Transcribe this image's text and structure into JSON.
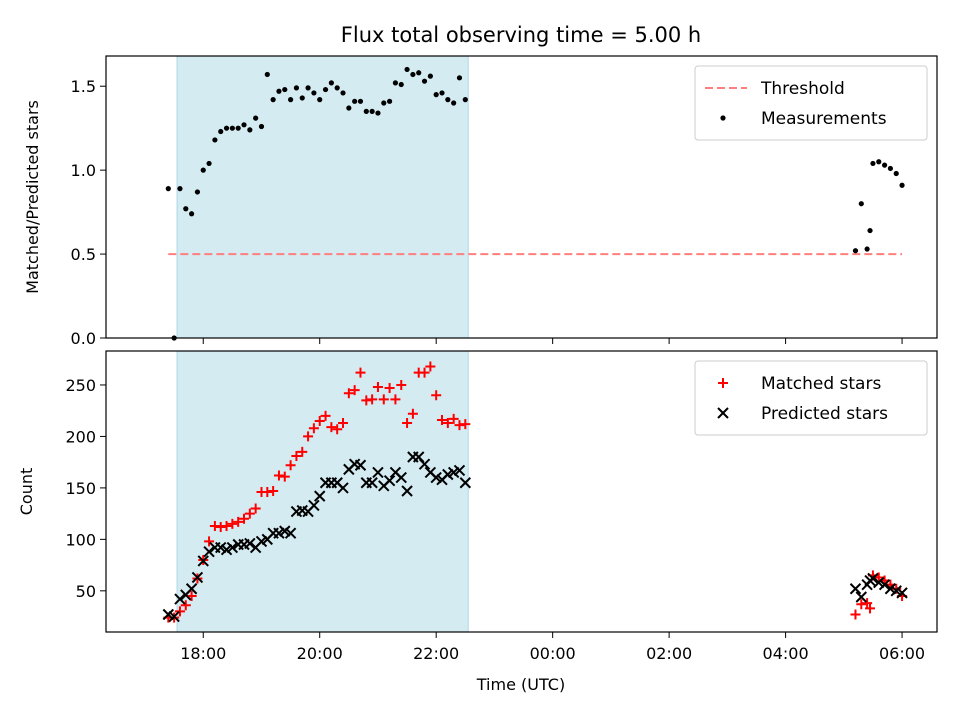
{
  "title": "Flux total observing time = 5.00 h",
  "x_axis": {
    "label": "Time (UTC)",
    "unit": "hours since 00:00 of first night",
    "range": [
      16.33,
      30.6
    ],
    "ticks": [
      {
        "value": 18,
        "label": "18:00"
      },
      {
        "value": 20,
        "label": "20:00"
      },
      {
        "value": 22,
        "label": "22:00"
      },
      {
        "value": 24,
        "label": "00:00"
      },
      {
        "value": 26,
        "label": "02:00"
      },
      {
        "value": 28,
        "label": "04:00"
      },
      {
        "value": 30,
        "label": "06:00"
      }
    ]
  },
  "shaded_interval": {
    "start": 17.55,
    "end": 22.55,
    "color": "#add8e6"
  },
  "colors": {
    "threshold": "#ff7f7f",
    "measurements": "#000000",
    "matched": "#ff0000",
    "predicted": "#000000"
  },
  "chart_data": [
    {
      "type": "scatter",
      "ylabel": "Matched/Predicted stars",
      "ylim": [
        0,
        1.68
      ],
      "yticks": [
        0.0,
        0.5,
        1.0,
        1.5
      ],
      "legend_position": "top-right",
      "series": [
        {
          "name": "Threshold",
          "style": "dashed-line",
          "x": [
            17.4,
            30.0
          ],
          "y": [
            0.5,
            0.5
          ]
        },
        {
          "name": "Measurements",
          "style": "dot",
          "x": [
            17.4,
            17.5,
            17.6,
            17.7,
            17.8,
            17.9,
            18.0,
            18.1,
            18.2,
            18.3,
            18.4,
            18.5,
            18.6,
            18.7,
            18.8,
            18.9,
            19.0,
            19.1,
            19.2,
            19.3,
            19.4,
            19.5,
            19.6,
            19.7,
            19.8,
            19.9,
            20.0,
            20.1,
            20.2,
            20.3,
            20.4,
            20.5,
            20.6,
            20.7,
            20.8,
            20.9,
            21.0,
            21.1,
            21.2,
            21.3,
            21.4,
            21.5,
            21.6,
            21.7,
            21.8,
            21.9,
            22.0,
            22.1,
            22.2,
            22.3,
            22.4,
            22.5,
            29.2,
            29.3,
            29.4,
            29.45,
            29.5,
            29.6,
            29.7,
            29.8,
            29.9,
            30.0
          ],
          "y": [
            0.89,
            0.0,
            0.89,
            0.77,
            0.74,
            0.87,
            1.0,
            1.04,
            1.18,
            1.23,
            1.25,
            1.25,
            1.25,
            1.27,
            1.24,
            1.31,
            1.26,
            1.57,
            1.42,
            1.47,
            1.48,
            1.42,
            1.49,
            1.43,
            1.49,
            1.46,
            1.42,
            1.48,
            1.52,
            1.49,
            1.46,
            1.37,
            1.41,
            1.41,
            1.35,
            1.35,
            1.34,
            1.4,
            1.41,
            1.52,
            1.51,
            1.6,
            1.57,
            1.58,
            1.53,
            1.56,
            1.45,
            1.46,
            1.42,
            1.4,
            1.55,
            1.42,
            0.52,
            0.8,
            0.53,
            0.64,
            1.04,
            1.05,
            1.03,
            1.01,
            0.98,
            0.91
          ]
        }
      ]
    },
    {
      "type": "scatter",
      "xlabel": "Time (UTC)",
      "ylabel": "Count",
      "ylim": [
        10,
        283
      ],
      "yticks": [
        50,
        100,
        150,
        200,
        250
      ],
      "legend_position": "top-right",
      "series": [
        {
          "name": "Matched stars",
          "style": "plus",
          "x": [
            17.4,
            17.5,
            17.6,
            17.7,
            17.8,
            17.9,
            18.0,
            18.1,
            18.2,
            18.3,
            18.4,
            18.5,
            18.6,
            18.7,
            18.8,
            18.9,
            19.0,
            19.1,
            19.2,
            19.3,
            19.4,
            19.5,
            19.6,
            19.7,
            19.8,
            19.9,
            20.0,
            20.1,
            20.2,
            20.3,
            20.4,
            20.5,
            20.6,
            20.7,
            20.8,
            20.9,
            21.0,
            21.1,
            21.2,
            21.3,
            21.4,
            21.5,
            21.6,
            21.7,
            21.8,
            21.9,
            22.0,
            22.1,
            22.2,
            22.3,
            22.4,
            22.5,
            29.2,
            29.3,
            29.4,
            29.45,
            29.5,
            29.6,
            29.7,
            29.8,
            29.9,
            30.0
          ],
          "y": [
            24,
            24,
            30,
            36,
            45,
            62,
            80,
            98,
            113,
            112,
            113,
            115,
            117,
            120,
            125,
            130,
            146,
            146,
            147,
            162,
            161,
            172,
            181,
            185,
            200,
            208,
            215,
            220,
            209,
            207,
            213,
            242,
            245,
            262,
            235,
            236,
            248,
            236,
            247,
            236,
            250,
            213,
            222,
            262,
            262,
            268,
            240,
            216,
            213,
            217,
            211,
            212,
            27,
            37,
            38,
            33,
            65,
            63,
            60,
            56,
            52,
            45
          ]
        },
        {
          "name": "Predicted stars",
          "style": "cross",
          "x": [
            17.4,
            17.5,
            17.6,
            17.7,
            17.8,
            17.9,
            18.0,
            18.1,
            18.2,
            18.3,
            18.4,
            18.5,
            18.6,
            18.7,
            18.8,
            18.9,
            19.0,
            19.1,
            19.2,
            19.3,
            19.4,
            19.5,
            19.6,
            19.7,
            19.8,
            19.9,
            20.0,
            20.1,
            20.2,
            20.3,
            20.4,
            20.5,
            20.6,
            20.7,
            20.8,
            20.9,
            21.0,
            21.1,
            21.2,
            21.3,
            21.4,
            21.5,
            21.6,
            21.7,
            21.8,
            21.9,
            22.0,
            22.1,
            22.2,
            22.3,
            22.4,
            22.5,
            29.2,
            29.3,
            29.4,
            29.45,
            29.5,
            29.6,
            29.7,
            29.8,
            29.9,
            30.0
          ],
          "y": [
            27,
            25,
            42,
            46,
            52,
            63,
            79,
            88,
            92,
            92,
            90,
            92,
            95,
            95,
            96,
            92,
            98,
            100,
            106,
            106,
            108,
            106,
            127,
            128,
            127,
            133,
            142,
            155,
            155,
            155,
            150,
            168,
            173,
            172,
            155,
            155,
            165,
            152,
            157,
            165,
            160,
            147,
            180,
            180,
            173,
            165,
            160,
            158,
            163,
            165,
            167,
            155,
            52,
            44,
            56,
            60,
            62,
            58,
            56,
            52,
            50,
            48
          ]
        }
      ]
    }
  ]
}
